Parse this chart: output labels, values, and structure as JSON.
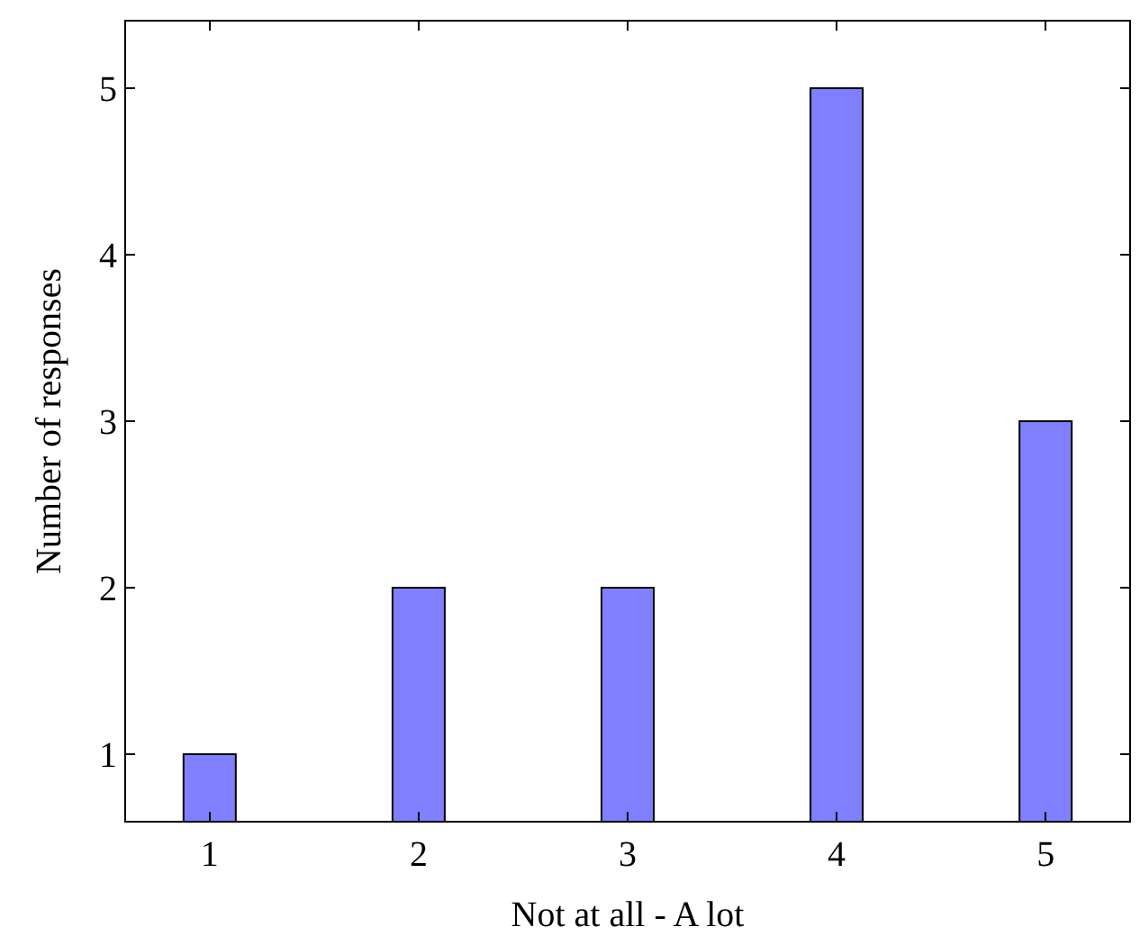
{
  "chart_data": {
    "type": "bar",
    "xlabel": "Not at all - A lot",
    "ylabel": "Number of responses",
    "x": [
      1,
      2,
      3,
      4,
      5
    ],
    "values": [
      1,
      2,
      2,
      5,
      3
    ],
    "color": "#8080ff",
    "xlim": [
      0.6,
      5.4
    ],
    "xticks": [
      1,
      2,
      3,
      4,
      5
    ],
    "ylim": [
      0.6,
      5.4
    ],
    "yticks": [
      1,
      2,
      3,
      4,
      5
    ],
    "legend": false
  }
}
